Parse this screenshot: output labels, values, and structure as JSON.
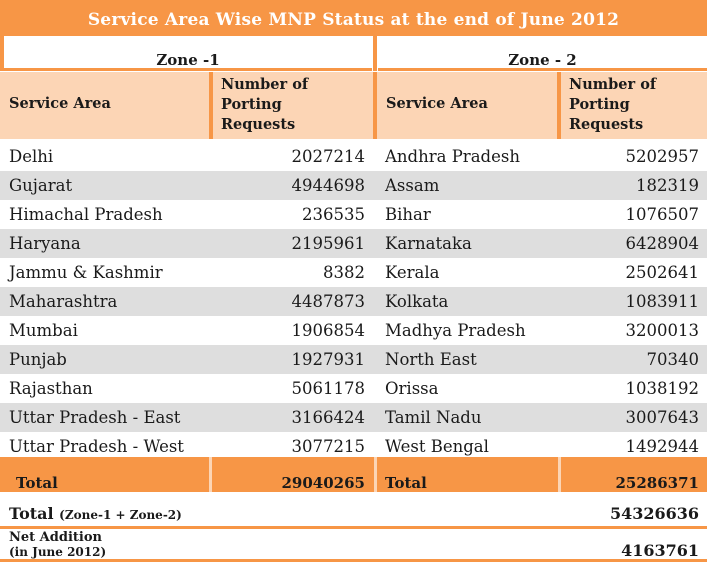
{
  "title": "Service Area Wise MNP Status at the end of June 2012",
  "zones": {
    "zone1": "Zone -1",
    "zone2": "Zone - 2"
  },
  "headers": {
    "service_area": "Service Area",
    "num_line1": "Number of",
    "num_line2": "Porting",
    "num_line3": "Requests"
  },
  "rows": [
    {
      "z1_area": "Delhi",
      "z1_num": "2027214",
      "z2_area": "Andhra Pradesh",
      "z2_num": "5202957"
    },
    {
      "z1_area": "Gujarat",
      "z1_num": "4944698",
      "z2_area": "Assam",
      "z2_num": "182319"
    },
    {
      "z1_area": "Himachal Pradesh",
      "z1_num": "236535",
      "z2_area": "Bihar",
      "z2_num": "1076507"
    },
    {
      "z1_area": "Haryana",
      "z1_num": "2195961",
      "z2_area": "Karnataka",
      "z2_num": "6428904"
    },
    {
      "z1_area": "Jammu & Kashmir",
      "z1_num": "8382",
      "z2_area": "Kerala",
      "z2_num": "2502641"
    },
    {
      "z1_area": "Maharashtra",
      "z1_num": "4487873",
      "z2_area": "Kolkata",
      "z2_num": "1083911"
    },
    {
      "z1_area": "Mumbai",
      "z1_num": "1906854",
      "z2_area": "Madhya Pradesh",
      "z2_num": "3200013"
    },
    {
      "z1_area": "Punjab",
      "z1_num": "1927931",
      "z2_area": "North East",
      "z2_num": "70340"
    },
    {
      "z1_area": "Rajasthan",
      "z1_num": "5061178",
      "z2_area": "Orissa",
      "z2_num": "1038192"
    },
    {
      "z1_area": "Uttar Pradesh - East",
      "z1_num": "3166424",
      "z2_area": "Tamil Nadu",
      "z2_num": "3007643"
    },
    {
      "z1_area": "Uttar Pradesh - West",
      "z1_num": "3077215",
      "z2_area": "West Bengal",
      "z2_num": "1492944"
    }
  ],
  "totals": {
    "label": "Total",
    "zone1": "29040265",
    "zone2": "25286371"
  },
  "grand_total": {
    "label": "Total",
    "sublabel": "(Zone-1 + Zone-2)",
    "value": "54326636"
  },
  "net_addition": {
    "label_line1": "Net Addition",
    "label_line2": "(in June 2012)",
    "value": "4163761"
  },
  "colors": {
    "accent": "#f79646",
    "header_fill": "#fcd5b5",
    "alt_row": "#dedede"
  }
}
